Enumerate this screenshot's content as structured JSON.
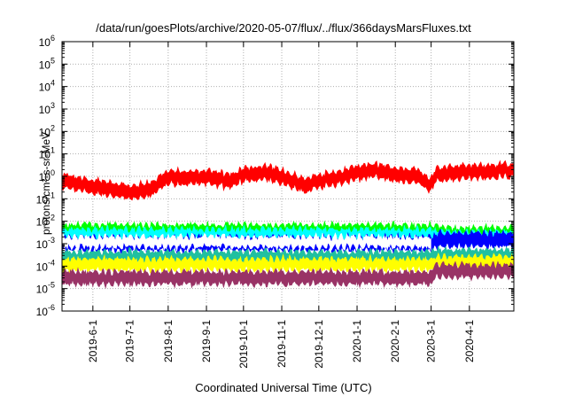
{
  "chart_data": {
    "type": "line",
    "title": "/data/run/goesPlots/archive/2020-05-07/flux/../flux/366daysMarsFluxes.txt",
    "xlabel": "Coordinated Universal Time (UTC)",
    "ylabel": "protons/cm²-s-sr-MeV",
    "yscale": "log",
    "ylim": [
      1e-06,
      1000000.0
    ],
    "xlim": [
      "2019-05-07",
      "2020-05-07"
    ],
    "grid": true,
    "legend": "none",
    "x_ticks": [
      "2019-6-1",
      "2019-7-1",
      "2019-8-1",
      "2019-9-1",
      "2019-10-1",
      "2019-11-1",
      "2019-12-1",
      "2020-1-1",
      "2020-2-1",
      "2020-3-1",
      "2020-4-1"
    ],
    "y_ticks": [
      {
        "base": "10",
        "exp": "-6"
      },
      {
        "base": "10",
        "exp": "-5"
      },
      {
        "base": "10",
        "exp": "-4"
      },
      {
        "base": "10",
        "exp": "-3"
      },
      {
        "base": "10",
        "exp": "-2"
      },
      {
        "base": "10",
        "exp": "-1"
      },
      {
        "base": "10",
        "exp": "0"
      },
      {
        "base": "10",
        "exp": "1"
      },
      {
        "base": "10",
        "exp": "2"
      },
      {
        "base": "10",
        "exp": "3"
      },
      {
        "base": "10",
        "exp": "4"
      },
      {
        "base": "10",
        "exp": "5"
      },
      {
        "base": "10",
        "exp": "6"
      }
    ],
    "series": [
      {
        "color": "#ff0000",
        "band_decades": 0.45,
        "x": [
          "2019-05-07",
          "2019-06-01",
          "2019-07-01",
          "2019-07-20",
          "2019-08-01",
          "2019-08-20",
          "2019-09-01",
          "2019-09-20",
          "2019-10-01",
          "2019-10-20",
          "2019-11-01",
          "2019-11-20",
          "2019-12-01",
          "2019-12-20",
          "2020-01-01",
          "2020-01-20",
          "2020-02-01",
          "2020-02-20",
          "2020-03-01",
          "2020-03-05",
          "2020-04-01",
          "2020-05-07"
        ],
        "y": [
          0.7,
          0.35,
          0.2,
          0.3,
          1.0,
          0.8,
          1.0,
          0.6,
          1.2,
          1.5,
          1.0,
          0.4,
          0.6,
          0.9,
          1.5,
          1.8,
          1.2,
          1.0,
          0.4,
          1.2,
          1.6,
          1.8
        ]
      },
      {
        "color": "#00ff00",
        "band_decades": 0.35,
        "x": [
          "2019-05-07",
          "2020-03-01",
          "2020-03-05",
          "2020-05-07"
        ],
        "y": [
          0.004,
          0.004,
          0.003,
          0.003
        ]
      },
      {
        "color": "#00ffff",
        "band_decades": 0.35,
        "x": [
          "2019-05-07",
          "2020-03-01",
          "2020-03-05",
          "2020-05-07"
        ],
        "y": [
          0.0025,
          0.0025,
          0.002,
          0.002
        ]
      },
      {
        "color": "#0000ff",
        "band_decades": 0.45,
        "x": [
          "2019-05-07",
          "2020-03-01",
          "2020-03-05",
          "2020-05-07"
        ],
        "y": [
          0.001,
          0.001,
          0.0015,
          0.0015
        ]
      },
      {
        "color": "#ffffff",
        "band_decades": 0.3,
        "x": [
          "2019-05-07",
          "2020-03-01"
        ],
        "y": [
          0.0012,
          0.0012
        ]
      },
      {
        "color": "#20c0a0",
        "band_decades": 0.35,
        "x": [
          "2019-05-07",
          "2020-03-01",
          "2020-03-05",
          "2020-05-07"
        ],
        "y": [
          0.00025,
          0.00025,
          0.0003,
          0.0003
        ]
      },
      {
        "color": "#ffff00",
        "band_decades": 0.35,
        "x": [
          "2019-05-07",
          "2020-03-01",
          "2020-03-05",
          "2020-05-07"
        ],
        "y": [
          0.00012,
          0.00012,
          0.00015,
          0.00015
        ]
      },
      {
        "color": "#993366",
        "band_decades": 0.4,
        "x": [
          "2019-05-07",
          "2020-03-01",
          "2020-03-05",
          "2020-05-07"
        ],
        "y": [
          3e-05,
          3e-05,
          6e-05,
          6e-05
        ]
      }
    ]
  }
}
